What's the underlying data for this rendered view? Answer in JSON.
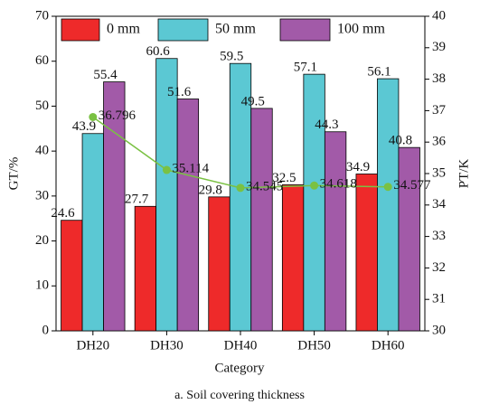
{
  "chart_data": {
    "type": "bar",
    "categories": [
      "DH20",
      "DH30",
      "DH40",
      "DH50",
      "DH60"
    ],
    "series": [
      {
        "name": "0 mm",
        "color": "#ee2a2a",
        "values": [
          24.6,
          27.7,
          29.8,
          32.5,
          34.9
        ]
      },
      {
        "name": "50 mm",
        "color": "#5bc8d3",
        "values": [
          43.9,
          60.6,
          59.5,
          57.1,
          56.1
        ]
      },
      {
        "name": "100 mm",
        "color": "#a25aa8",
        "values": [
          55.4,
          51.6,
          49.5,
          44.3,
          40.8
        ]
      },
      {
        "type": "line",
        "axis": "y2",
        "color": "#7ac143",
        "values": [
          36.796,
          35.114,
          34.545,
          34.618,
          34.577
        ]
      }
    ],
    "xlabel": "Category",
    "ylabel": "GT/%",
    "y2label": "PT/K",
    "ylim": [
      0,
      70
    ],
    "yticks": [
      0,
      10,
      20,
      30,
      40,
      50,
      60,
      70
    ],
    "y2lim": [
      30,
      40
    ],
    "y2ticks": [
      30,
      31,
      32,
      33,
      34,
      35,
      36,
      37,
      38,
      39,
      40
    ],
    "legend": "top",
    "caption": "a. Soil covering thickness"
  }
}
